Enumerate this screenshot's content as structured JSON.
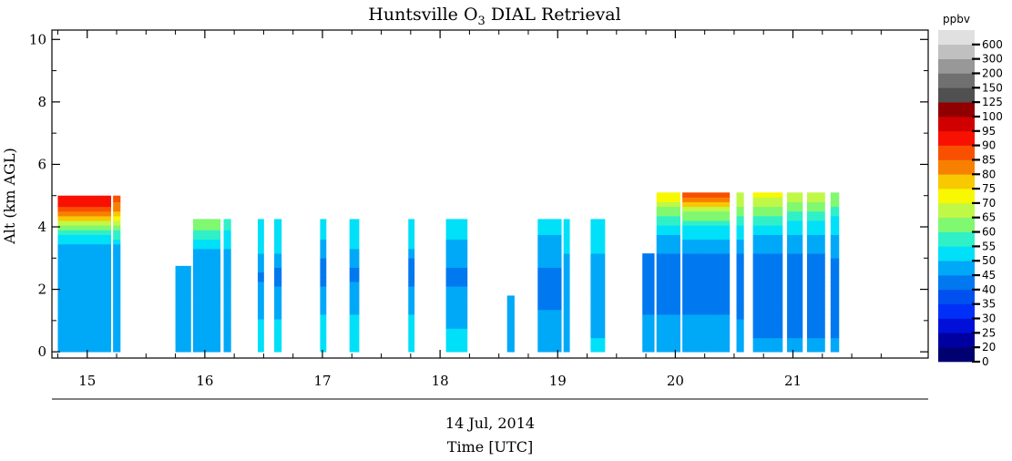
{
  "chart_data": {
    "type": "heatmap",
    "title": {
      "prefix": "Huntsville O",
      "subscript": "3",
      "suffix": " DIAL Retrieval"
    },
    "ylabel": "Alt (km AGL)",
    "xlabel_date": "14 Jul, 2014",
    "xlabel": "Time [UTC]",
    "x_range": [
      14.7,
      22.15
    ],
    "ylim": [
      -0.2,
      10.3
    ],
    "x_ticks": [
      "15",
      "16",
      "17",
      "18",
      "19",
      "20",
      "21"
    ],
    "y_ticks": [
      "0",
      "2",
      "4",
      "6",
      "8",
      "10"
    ],
    "colorbar": {
      "unit": "ppbv",
      "labels": [
        "0",
        "20",
        "25",
        "30",
        "35",
        "40",
        "45",
        "50",
        "55",
        "60",
        "65",
        "70",
        "75",
        "80",
        "85",
        "90",
        "95",
        "100",
        "125",
        "150",
        "200",
        "300",
        "600"
      ],
      "colors": [
        "#000070",
        "#0000a0",
        "#0010d8",
        "#0030f8",
        "#0050f0",
        "#0078f0",
        "#00a8f8",
        "#00e0f8",
        "#30f0c8",
        "#80f870",
        "#c0f848",
        "#f8f800",
        "#f8c800",
        "#f88000",
        "#f85000",
        "#f81000",
        "#d00000",
        "#900000",
        "#505050",
        "#707070",
        "#989898",
        "#c0c0c0",
        "#e0e0e0"
      ],
      "bounds": [
        0,
        20,
        25,
        30,
        35,
        40,
        45,
        50,
        55,
        60,
        65,
        70,
        75,
        80,
        85,
        90,
        95,
        100,
        125,
        150,
        200,
        300,
        600
      ]
    },
    "segments": [
      {
        "x": [
          14.75,
          15.2
        ],
        "top": 5.0,
        "profile": [
          [
            0,
            50
          ],
          [
            1.8,
            48
          ],
          [
            2.3,
            46
          ],
          [
            3.1,
            47
          ],
          [
            3.6,
            51
          ],
          [
            4.0,
            62
          ],
          [
            4.25,
            74
          ],
          [
            4.5,
            87
          ],
          [
            4.75,
            93
          ],
          [
            5.0,
            93
          ]
        ]
      },
      {
        "x": [
          15.22,
          15.28
        ],
        "top": 5.0,
        "profile": [
          [
            0,
            50
          ],
          [
            2.8,
            46
          ],
          [
            3.4,
            50
          ],
          [
            4.0,
            62
          ],
          [
            4.5,
            82
          ],
          [
            5.0,
            87
          ]
        ]
      },
      {
        "x": [
          15.75,
          15.88
        ],
        "top": 2.75,
        "profile": [
          [
            0,
            50
          ],
          [
            1.2,
            48
          ],
          [
            2.0,
            46
          ],
          [
            2.75,
            46
          ]
        ]
      },
      {
        "x": [
          15.9,
          16.13
        ],
        "top": 4.25,
        "profile": [
          [
            0,
            50
          ],
          [
            1.0,
            49
          ],
          [
            2.0,
            47
          ],
          [
            2.9,
            45
          ],
          [
            3.3,
            51
          ],
          [
            3.8,
            58
          ],
          [
            4.25,
            64
          ]
        ]
      },
      {
        "x": [
          16.16,
          16.22
        ],
        "top": 4.25,
        "profile": [
          [
            0,
            50
          ],
          [
            2.0,
            48
          ],
          [
            3.0,
            47
          ],
          [
            3.5,
            52
          ],
          [
            4.25,
            58
          ]
        ]
      },
      {
        "x": [
          16.45,
          16.5
        ],
        "top": 4.25,
        "profile": [
          [
            0,
            52
          ],
          [
            1.5,
            49
          ],
          [
            2.5,
            44
          ],
          [
            3.2,
            50
          ],
          [
            4.25,
            52
          ]
        ]
      },
      {
        "x": [
          16.59,
          16.65
        ],
        "top": 4.25,
        "profile": [
          [
            0,
            52
          ],
          [
            1.5,
            49
          ],
          [
            2.5,
            42
          ],
          [
            3.2,
            50
          ],
          [
            4.25,
            52
          ]
        ]
      },
      {
        "x": [
          16.98,
          17.03
        ],
        "top": 4.25,
        "profile": [
          [
            0,
            53
          ],
          [
            1.5,
            49
          ],
          [
            2.6,
            41
          ],
          [
            3.3,
            49
          ],
          [
            4.25,
            52
          ]
        ]
      },
      {
        "x": [
          17.23,
          17.31
        ],
        "top": 4.25,
        "profile": [
          [
            0,
            53
          ],
          [
            1.5,
            49
          ],
          [
            2.5,
            44
          ],
          [
            3.3,
            50
          ],
          [
            4.25,
            52
          ]
        ]
      },
      {
        "x": [
          17.73,
          17.78
        ],
        "top": 4.25,
        "profile": [
          [
            0,
            53
          ],
          [
            1.5,
            49
          ],
          [
            2.8,
            41
          ],
          [
            3.3,
            50
          ],
          [
            4.25,
            52
          ]
        ]
      },
      {
        "x": [
          18.05,
          18.23
        ],
        "top": 4.25,
        "profile": [
          [
            0,
            53
          ],
          [
            0.7,
            50
          ],
          [
            1.5,
            47
          ],
          [
            2.5,
            44
          ],
          [
            3.2,
            48
          ],
          [
            3.8,
            51
          ],
          [
            4.25,
            53
          ]
        ]
      },
      {
        "x": [
          18.57,
          18.63
        ],
        "top": 1.8,
        "profile": [
          [
            0,
            48
          ],
          [
            1.0,
            46
          ],
          [
            1.8,
            45
          ]
        ]
      },
      {
        "x": [
          18.83,
          19.03
        ],
        "top": 4.25,
        "profile": [
          [
            0,
            50
          ],
          [
            0.7,
            48
          ],
          [
            1.5,
            44
          ],
          [
            2.5,
            44
          ],
          [
            3.2,
            48
          ],
          [
            3.8,
            50
          ],
          [
            4.25,
            54
          ]
        ]
      },
      {
        "x": [
          19.05,
          19.1
        ],
        "top": 4.25,
        "profile": [
          [
            0,
            50
          ],
          [
            1.5,
            46
          ],
          [
            2.5,
            45
          ],
          [
            3.2,
            50
          ],
          [
            4.25,
            53
          ]
        ]
      },
      {
        "x": [
          19.28,
          19.4
        ],
        "top": 4.25,
        "profile": [
          [
            0,
            51
          ],
          [
            1.5,
            47
          ],
          [
            2.5,
            45
          ],
          [
            3.2,
            50
          ],
          [
            4.25,
            53
          ]
        ]
      },
      {
        "x": [
          19.72,
          19.82
        ],
        "top": 3.15,
        "profile": [
          [
            0,
            48
          ],
          [
            1.5,
            44
          ],
          [
            3.15,
            42
          ]
        ]
      },
      {
        "x": [
          19.84,
          20.04
        ],
        "top": 5.1,
        "profile": [
          [
            0,
            47
          ],
          [
            0.8,
            46
          ],
          [
            1.5,
            44
          ],
          [
            2.5,
            41
          ],
          [
            3.2,
            45
          ],
          [
            3.8,
            51
          ],
          [
            4.3,
            58
          ],
          [
            4.8,
            70
          ],
          [
            5.1,
            76
          ]
        ]
      },
      {
        "x": [
          20.06,
          20.46
        ],
        "top": 5.1,
        "profile": [
          [
            0,
            47
          ],
          [
            0.8,
            46
          ],
          [
            1.5,
            44
          ],
          [
            2.5,
            40
          ],
          [
            3.1,
            44
          ],
          [
            3.6,
            50
          ],
          [
            4.1,
            56
          ],
          [
            4.5,
            66
          ],
          [
            4.8,
            80
          ],
          [
            5.1,
            88
          ]
        ]
      },
      {
        "x": [
          20.52,
          20.58
        ],
        "top": 5.1,
        "profile": [
          [
            0,
            47
          ],
          [
            1.5,
            44
          ],
          [
            2.5,
            41
          ],
          [
            3.3,
            46
          ],
          [
            4.1,
            55
          ],
          [
            4.6,
            64
          ],
          [
            5.1,
            70
          ]
        ]
      },
      {
        "x": [
          20.66,
          20.91
        ],
        "top": 5.1,
        "profile": [
          [
            0,
            46
          ],
          [
            0.8,
            44
          ],
          [
            1.5,
            43
          ],
          [
            2.5,
            40
          ],
          [
            3.1,
            44
          ],
          [
            3.7,
            50
          ],
          [
            4.2,
            56
          ],
          [
            4.6,
            64
          ],
          [
            5.1,
            73
          ]
        ]
      },
      {
        "x": [
          20.95,
          21.08
        ],
        "top": 5.1,
        "profile": [
          [
            0,
            46
          ],
          [
            1.5,
            43
          ],
          [
            2.5,
            40
          ],
          [
            3.2,
            46
          ],
          [
            4.0,
            52
          ],
          [
            4.6,
            62
          ],
          [
            5.1,
            70
          ]
        ]
      },
      {
        "x": [
          21.12,
          21.27
        ],
        "top": 5.1,
        "profile": [
          [
            0,
            46
          ],
          [
            1.5,
            42
          ],
          [
            2.5,
            40
          ],
          [
            3.2,
            46
          ],
          [
            4.0,
            52
          ],
          [
            4.6,
            62
          ],
          [
            5.1,
            68
          ]
        ]
      },
      {
        "x": [
          21.32,
          21.39
        ],
        "top": 5.1,
        "profile": [
          [
            0,
            46
          ],
          [
            1.5,
            42
          ],
          [
            2.5,
            41
          ],
          [
            3.3,
            47
          ],
          [
            4.2,
            53
          ],
          [
            4.7,
            60
          ],
          [
            5.1,
            66
          ]
        ]
      }
    ]
  }
}
